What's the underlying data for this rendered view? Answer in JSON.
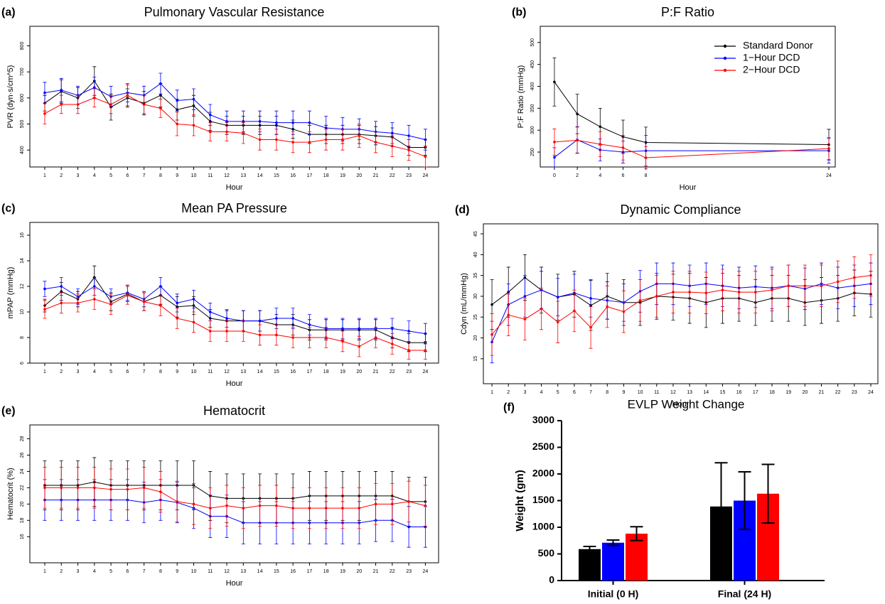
{
  "chart_data": [
    {
      "type": "line",
      "panel": "(a)",
      "title": "Pulmonary Vascular Resistance",
      "ylabel": "PVR (dyn·s/cm^5)",
      "xlabel": "Hour",
      "x": [
        1,
        2,
        3,
        4,
        5,
        6,
        7,
        8,
        9,
        10,
        11,
        12,
        13,
        14,
        15,
        16,
        17,
        18,
        19,
        20,
        21,
        22,
        23,
        24
      ],
      "xlim": [
        0.1,
        24.8
      ],
      "xticks": [
        1,
        2,
        3,
        4,
        5,
        6,
        7,
        8,
        9,
        10,
        11,
        12,
        13,
        14,
        15,
        16,
        17,
        18,
        19,
        20,
        21,
        22,
        23,
        24
      ],
      "ylim": [
        335,
        875
      ],
      "yticks": [
        400,
        500,
        600,
        700,
        800
      ],
      "series": [
        {
          "color": "#000000",
          "values": [
            580,
            625,
            600,
            665,
            565,
            600,
            580,
            610,
            555,
            570,
            510,
            495,
            495,
            495,
            495,
            480,
            460,
            460,
            460,
            460,
            455,
            450,
            410,
            410
          ],
          "errors": [
            30,
            45,
            40,
            55,
            50,
            35,
            45,
            45,
            40,
            40,
            35,
            35,
            35,
            35,
            35,
            35,
            35,
            35,
            35,
            35,
            35,
            35,
            30,
            30
          ]
        },
        {
          "color": "#0000ff",
          "values": [
            620,
            630,
            610,
            640,
            605,
            620,
            610,
            655,
            590,
            595,
            535,
            510,
            510,
            510,
            505,
            505,
            505,
            485,
            480,
            480,
            470,
            465,
            455,
            440
          ],
          "errors": [
            40,
            45,
            35,
            40,
            40,
            35,
            35,
            40,
            40,
            40,
            40,
            40,
            40,
            40,
            45,
            45,
            45,
            45,
            45,
            40,
            40,
            40,
            40,
            40
          ]
        },
        {
          "color": "#ff0000",
          "values": [
            540,
            575,
            575,
            600,
            575,
            610,
            575,
            560,
            500,
            495,
            470,
            470,
            465,
            440,
            440,
            430,
            430,
            440,
            440,
            455,
            430,
            415,
            400,
            375
          ],
          "errors": [
            40,
            35,
            35,
            35,
            35,
            40,
            35,
            35,
            45,
            40,
            35,
            35,
            40,
            40,
            40,
            40,
            40,
            40,
            40,
            45,
            40,
            40,
            40,
            40
          ]
        }
      ]
    },
    {
      "type": "line",
      "panel": "(b)",
      "title": "P:F Ratio",
      "ylabel": "P:F Ratio (mmHg)",
      "xlabel": "Hour",
      "legend": "top-right",
      "x": [
        0,
        2,
        4,
        6,
        8,
        24
      ],
      "xlim": [
        -1.24,
        24.56
      ],
      "xticks": [
        0,
        2,
        4,
        6,
        8,
        24
      ],
      "ylim": [
        216,
        537
      ],
      "yticks": [
        250,
        300,
        350,
        400,
        450,
        500
      ],
      "series": [
        {
          "name": "Standard Donor",
          "color": "#000000",
          "values": [
            410,
            337,
            308,
            285,
            272,
            267
          ],
          "errors": [
            55,
            45,
            42,
            38,
            35,
            35
          ]
        },
        {
          "name": "1−Hour DCD",
          "color": "#0000ff",
          "values": [
            238,
            278,
            255,
            250,
            253,
            253
          ],
          "errors": [
            22,
            30,
            25,
            25,
            35,
            28
          ]
        },
        {
          "name": "2−Hour DCD",
          "color": "#ff0000",
          "values": [
            273,
            277,
            268,
            260,
            237,
            258
          ],
          "errors": [
            30,
            30,
            28,
            28,
            25,
            25
          ]
        }
      ]
    },
    {
      "type": "line",
      "panel": "(c)",
      "title": "Mean PA Pressure",
      "ylabel": "mPAP (mmHg)",
      "xlabel": "Hour",
      "x": [
        1,
        2,
        3,
        4,
        5,
        6,
        7,
        8,
        9,
        10,
        11,
        12,
        13,
        14,
        15,
        16,
        17,
        18,
        19,
        20,
        21,
        22,
        23,
        24
      ],
      "xlim": [
        0.1,
        24.8
      ],
      "xticks": [
        1,
        2,
        3,
        4,
        5,
        6,
        7,
        8,
        9,
        10,
        11,
        12,
        13,
        14,
        15,
        16,
        17,
        18,
        19,
        20,
        21,
        22,
        23,
        24
      ],
      "ylim": [
        6,
        17
      ],
      "yticks": [
        6,
        8,
        10,
        12,
        14,
        16
      ],
      "series": [
        {
          "color": "#000000",
          "values": [
            10.5,
            11.6,
            11,
            12.7,
            10.8,
            11.4,
            10.8,
            11.3,
            10.4,
            10.5,
            9.5,
            9.3,
            9.3,
            9.3,
            9,
            9,
            8.6,
            8.6,
            8.6,
            8.6,
            8.6,
            8,
            7.6,
            7.6
          ],
          "errors": [
            0.5,
            0.7,
            0.6,
            0.9,
            0.7,
            0.6,
            0.7,
            0.7,
            0.8,
            0.7,
            0.7,
            0.8,
            0.8,
            0.8,
            0.8,
            0.8,
            0.8,
            0.8,
            0.8,
            0.8,
            0.8,
            0.8,
            0.7,
            0.7
          ]
        },
        {
          "color": "#0000ff",
          "values": [
            11.8,
            12,
            11.2,
            12,
            11.2,
            11.5,
            11,
            12,
            10.7,
            11,
            10,
            9.5,
            9.3,
            9.3,
            9.5,
            9.5,
            9,
            8.7,
            8.7,
            8.7,
            8.7,
            8.7,
            8.5,
            8.3
          ],
          "errors": [
            0.6,
            0.7,
            0.6,
            0.7,
            0.6,
            0.6,
            0.6,
            0.7,
            0.7,
            0.7,
            0.7,
            0.7,
            0.8,
            0.8,
            0.8,
            0.8,
            0.8,
            0.8,
            0.8,
            0.8,
            0.8,
            0.8,
            0.8,
            0.8
          ]
        },
        {
          "color": "#ff0000",
          "values": [
            10.2,
            10.7,
            10.7,
            11,
            10.6,
            11.3,
            10.8,
            10.5,
            9.5,
            9.2,
            8.5,
            8.5,
            8.5,
            8.2,
            8.2,
            8,
            8,
            8,
            7.7,
            7.3,
            8,
            7.5,
            7,
            7
          ],
          "errors": [
            0.7,
            0.8,
            0.7,
            0.8,
            0.8,
            0.7,
            0.7,
            0.8,
            0.8,
            0.8,
            0.8,
            0.8,
            0.8,
            0.8,
            0.8,
            0.8,
            0.8,
            0.8,
            0.8,
            0.8,
            0.8,
            0.8,
            0.7,
            0.7
          ]
        }
      ]
    },
    {
      "type": "line",
      "panel": "(d)",
      "title": "Dynamic Compliance",
      "ylabel": "Cdyn (mL/mmHg)",
      "xlabel": "Hour",
      "x": [
        1,
        2,
        3,
        4,
        5,
        6,
        7,
        8,
        9,
        10,
        11,
        12,
        13,
        14,
        15,
        16,
        17,
        18,
        19,
        20,
        21,
        22,
        23,
        24
      ],
      "xlim": [
        0.48,
        24.43
      ],
      "xticks": [
        1,
        2,
        3,
        4,
        5,
        6,
        7,
        8,
        9,
        10,
        11,
        12,
        13,
        14,
        15,
        16,
        17,
        18,
        19,
        20,
        21,
        22,
        23,
        24
      ],
      "ylim": [
        9,
        47.4
      ],
      "yticks": [
        15,
        20,
        25,
        30,
        35,
        40,
        45
      ],
      "series": [
        {
          "color": "#000000",
          "values": [
            28,
            31,
            34.5,
            31.5,
            29.8,
            30.5,
            27.8,
            30,
            28.5,
            28.5,
            30,
            29.8,
            29.5,
            28.5,
            29.5,
            29.5,
            28.5,
            29.5,
            29.5,
            28.5,
            29,
            29.5,
            30.8,
            30.5
          ],
          "errors": [
            6,
            6,
            5.5,
            5.5,
            5.5,
            5.5,
            6,
            5.5,
            5.5,
            5.5,
            5.5,
            5.5,
            6,
            6,
            6,
            5.5,
            5.5,
            5.5,
            5.5,
            5.5,
            5.5,
            5.5,
            5.5,
            5.5
          ]
        },
        {
          "color": "#0000ff",
          "values": [
            19,
            28,
            30,
            31.5,
            29.8,
            30.8,
            29.5,
            29,
            28.5,
            31.2,
            33,
            33,
            32.5,
            33,
            32.5,
            32,
            32.3,
            32,
            32.5,
            31.8,
            33,
            32,
            32.5,
            33
          ],
          "errors": [
            5,
            5,
            5,
            4.5,
            4.5,
            4.5,
            4.5,
            4.5,
            4.5,
            5,
            5,
            5,
            5,
            5,
            5,
            5,
            5,
            5,
            5,
            5,
            5,
            5,
            5,
            5
          ]
        },
        {
          "color": "#ff0000",
          "values": [
            20.8,
            25.5,
            24.5,
            27,
            23.8,
            26.5,
            22.5,
            27.5,
            26.3,
            29,
            30,
            31,
            31,
            30.8,
            31.5,
            31,
            31,
            31.5,
            32.5,
            32.5,
            32.5,
            33.5,
            34.5,
            35
          ],
          "errors": [
            5,
            5,
            5,
            5,
            5,
            5,
            5,
            5,
            5,
            5,
            5,
            5,
            5,
            5,
            5,
            5,
            5,
            5,
            5,
            5,
            5,
            5,
            5,
            5
          ]
        }
      ]
    },
    {
      "type": "line",
      "panel": "(e)",
      "title": "Hematocrit",
      "ylabel": "Hematocrit (%)",
      "xlabel": "Hour",
      "x": [
        1,
        2,
        3,
        4,
        5,
        6,
        7,
        8,
        9,
        10,
        11,
        12,
        13,
        14,
        15,
        16,
        17,
        18,
        19,
        20,
        21,
        22,
        23,
        24
      ],
      "xlim": [
        0.1,
        24.8
      ],
      "xticks": [
        1,
        2,
        3,
        4,
        5,
        6,
        7,
        8,
        9,
        10,
        11,
        12,
        13,
        14,
        15,
        16,
        17,
        18,
        19,
        20,
        21,
        22,
        23,
        24
      ],
      "ylim": [
        12.8,
        29.7
      ],
      "yticks": [
        16,
        18,
        20,
        22,
        24,
        26,
        28
      ],
      "series": [
        {
          "color": "#000000",
          "values": [
            22.3,
            22.3,
            22.3,
            22.7,
            22.3,
            22.3,
            22.3,
            22.3,
            22.3,
            22.3,
            21,
            20.7,
            20.7,
            20.7,
            20.7,
            20.7,
            21,
            21,
            21,
            21,
            21,
            21,
            20.3,
            20.3
          ],
          "errors": [
            3,
            3,
            3,
            3,
            3,
            3,
            3,
            3,
            3,
            3,
            3,
            3,
            3,
            3,
            3,
            3,
            3,
            3,
            3,
            3,
            3,
            3,
            3,
            3
          ]
        },
        {
          "color": "#0000ff",
          "values": [
            20.5,
            20.5,
            20.5,
            20.5,
            20.5,
            20.5,
            20.2,
            20.5,
            20.2,
            19.5,
            18.5,
            18.5,
            17.7,
            17.7,
            17.7,
            17.7,
            17.7,
            17.7,
            17.7,
            17.7,
            18,
            18,
            17.2,
            17.2
          ],
          "errors": [
            2.5,
            2.5,
            2.5,
            2.5,
            2.5,
            2.5,
            2.5,
            2.5,
            2.5,
            2.5,
            2.6,
            2.6,
            2.6,
            2.6,
            2.6,
            2.6,
            2.6,
            2.6,
            2.6,
            2.6,
            2.6,
            2.6,
            2.5,
            2.5
          ]
        },
        {
          "color": "#ff0000",
          "values": [
            22,
            22,
            22,
            22,
            21.8,
            21.8,
            22,
            21.5,
            20.3,
            20,
            19.5,
            19.8,
            19.5,
            19.8,
            19.8,
            19.5,
            19.5,
            19.5,
            19.5,
            19.5,
            20,
            20,
            20.3,
            19.8
          ],
          "errors": [
            2.5,
            2.5,
            2.5,
            2.5,
            2.5,
            2.5,
            2.5,
            2.5,
            2.5,
            2.5,
            2.5,
            2.5,
            2.5,
            2.5,
            2.5,
            2.5,
            2.5,
            2.5,
            2.5,
            2.5,
            2.5,
            2.5,
            2.5,
            2.5
          ]
        }
      ]
    },
    {
      "type": "bar",
      "panel": "(f)",
      "title": "EVLP Weight Change",
      "ylabel": "Weight (gm)",
      "categories": [
        "Initial (0 H)",
        "Final (24 H)"
      ],
      "ylim": [
        0,
        3000
      ],
      "yticks": [
        0,
        500,
        1000,
        1500,
        2000,
        2500,
        3000
      ],
      "series": [
        {
          "color": "#000000",
          "values": [
            590,
            1390
          ],
          "errors": [
            50,
            820
          ]
        },
        {
          "color": "#0000ff",
          "values": [
            710,
            1500
          ],
          "errors": [
            50,
            540
          ]
        },
        {
          "color": "#ff0000",
          "values": [
            880,
            1630
          ],
          "errors": [
            130,
            550
          ]
        }
      ]
    }
  ]
}
